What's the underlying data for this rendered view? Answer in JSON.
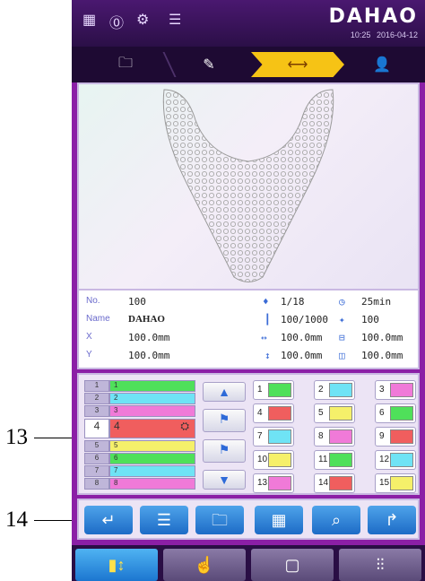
{
  "annotations": {
    "a13": "13",
    "a14": "14"
  },
  "header": {
    "brand": "DAHAO",
    "time": "10:25",
    "date": "2016-04-12",
    "icons": [
      "machine-status-icon",
      "speed-icon",
      "thread-icon",
      "head-icon"
    ]
  },
  "steps": [
    "folder-pattern-icon",
    "edit-pattern-icon",
    "embroidery-frame-icon",
    "operator-icon"
  ],
  "info": {
    "no_label": "No.",
    "no_value": "100",
    "name_label": "Name",
    "name_value": "DAHAO",
    "x_label": "X",
    "x_value": "100.0mm",
    "y_label": "Y",
    "y_value": "100.0mm",
    "colors": "1/18",
    "stitches": "100/1000",
    "width": "100.0mm",
    "height": "100.0mm",
    "time": "25min",
    "speed": "100",
    "frame_w": "100.0mm",
    "frame_h": "100.0mm"
  },
  "thread_list": [
    {
      "num": "1",
      "label": "1",
      "color": "#4fe05a"
    },
    {
      "num": "2",
      "label": "2",
      "color": "#6fe3f5"
    },
    {
      "num": "3",
      "label": "3",
      "color": "#f07ad8"
    },
    {
      "num": "4",
      "label": "4",
      "color": "#f05e5e",
      "selected": true
    },
    {
      "num": "5",
      "label": "5",
      "color": "#f5f06a"
    },
    {
      "num": "6",
      "label": "6",
      "color": "#4fe05a"
    },
    {
      "num": "7",
      "label": "7",
      "color": "#6fe3f5"
    },
    {
      "num": "8",
      "label": "8",
      "color": "#f07ad8"
    }
  ],
  "needles": [
    {
      "num": "1",
      "color": "#4fe05a"
    },
    {
      "num": "2",
      "color": "#6fe3f5"
    },
    {
      "num": "3",
      "color": "#f07ad8"
    },
    {
      "num": "4",
      "color": "#f05e5e"
    },
    {
      "num": "5",
      "color": "#f5f06a"
    },
    {
      "num": "6",
      "color": "#4fe05a"
    },
    {
      "num": "7",
      "color": "#6fe3f5"
    },
    {
      "num": "8",
      "color": "#f07ad8"
    },
    {
      "num": "9",
      "color": "#f05e5e"
    },
    {
      "num": "10",
      "color": "#f5f06a"
    },
    {
      "num": "11",
      "color": "#4fe05a"
    },
    {
      "num": "12",
      "color": "#6fe3f5"
    },
    {
      "num": "13",
      "color": "#f07ad8"
    },
    {
      "num": "14",
      "color": "#f05e5e"
    },
    {
      "num": "15",
      "color": "#f5f06a"
    }
  ],
  "toolbar": [
    "return-icon",
    "list-icon",
    "folder-icon",
    "color-setting-icon",
    "search-icon",
    "next-icon"
  ],
  "modes": [
    "needle-sequence-icon",
    "manual-icon",
    "frame-icon",
    "needle-bar-icon"
  ]
}
